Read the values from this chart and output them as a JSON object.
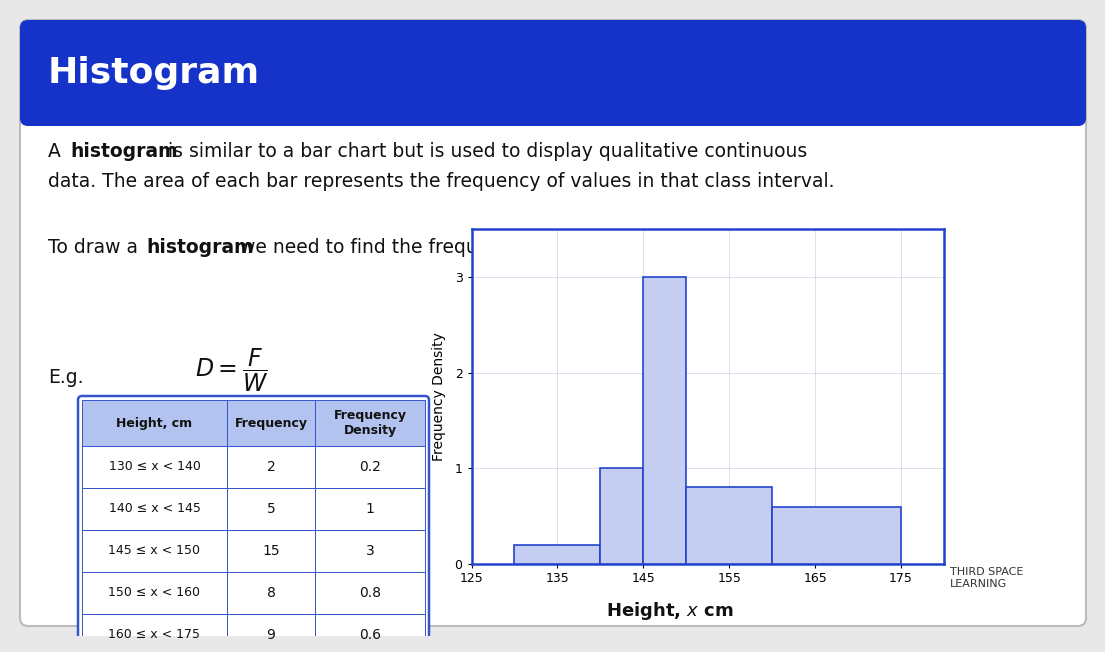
{
  "title": "Histogram",
  "title_bg_color": "#1533c8",
  "title_text_color": "#ffffff",
  "card_bg_color": "#ffffff",
  "card_border_color": "#bbbbbb",
  "outer_bg_color": "#e8e8e8",
  "table_header_bg": "#b3c3ef",
  "table_border_color": "#3355cc",
  "table_headers": [
    "Height, cm",
    "Frequency",
    "Frequency\nDensity"
  ],
  "table_rows": [
    [
      "130 ≤ x < 140",
      "2",
      "0.2"
    ],
    [
      "140 ≤ x < 145",
      "5",
      "1"
    ],
    [
      "145 ≤ x < 150",
      "15",
      "3"
    ],
    [
      "150 ≤ x < 160",
      "8",
      "0.8"
    ],
    [
      "160 ≤ x < 175",
      "9",
      "0.6"
    ]
  ],
  "hist_bar_left": [
    130,
    140,
    145,
    150,
    160
  ],
  "hist_bar_widths": [
    10,
    5,
    5,
    10,
    15
  ],
  "hist_bar_heights": [
    0.2,
    1,
    3,
    0.8,
    0.6
  ],
  "hist_bar_fill": "#c5cdf0",
  "hist_bar_edge": "#2244cc",
  "hist_ylabel": "Frequency Density",
  "hist_xlim": [
    125,
    180
  ],
  "hist_ylim": [
    0,
    3.5
  ],
  "hist_xticks": [
    125,
    135,
    145,
    155,
    165,
    175
  ],
  "hist_yticks": [
    0,
    1,
    2,
    3
  ],
  "hist_border_color": "#2244cc",
  "hist_grid_color": "#d0d0e8"
}
